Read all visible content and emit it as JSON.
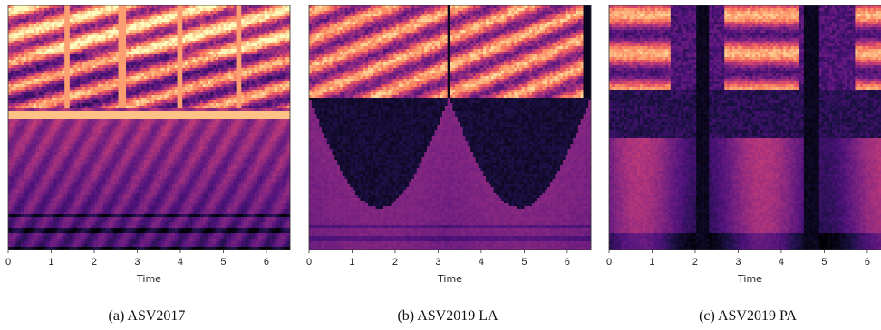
{
  "figures": [
    {
      "caption": "(a)  ASV2017",
      "chart_data": {
        "type": "heatmap",
        "xlabel": "Time",
        "x_ticks": [
          0,
          1,
          2,
          3,
          4,
          5,
          6
        ],
        "xlim": [
          0,
          6.55
        ],
        "colormap": "magma",
        "pattern": "asv2017",
        "segment_boundaries": [
          1.35,
          2.65,
          4.0,
          5.35
        ],
        "voice_band_edge_fraction": 0.42
      }
    },
    {
      "caption": "(b)  ASV2019 LA",
      "chart_data": {
        "type": "heatmap",
        "xlabel": "Time",
        "x_ticks": [
          0,
          1,
          2,
          3,
          4,
          5,
          6
        ],
        "xlim": [
          0,
          6.55
        ],
        "colormap": "magma",
        "pattern": "asv2019la",
        "segment_boundaries": [
          3.25
        ],
        "voice_band_edge_fraction": 0.38
      }
    },
    {
      "caption": "(c)  ASV2019 PA",
      "chart_data": {
        "type": "heatmap",
        "xlabel": "Time",
        "x_ticks": [
          0,
          1,
          2,
          3,
          4,
          5,
          6
        ],
        "xlim": [
          0,
          6.55
        ],
        "colormap": "magma",
        "pattern": "asv2019pa",
        "silence_intervals": [
          [
            2.05,
            2.35
          ],
          [
            4.5,
            4.9
          ]
        ],
        "voice_band_edge_fraction": 0.35
      }
    }
  ]
}
